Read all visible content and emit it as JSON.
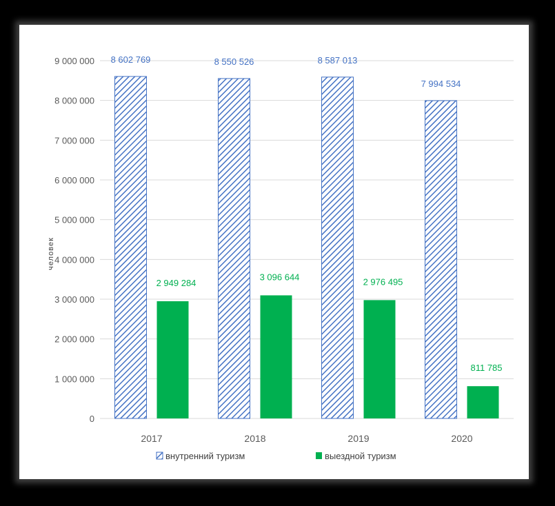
{
  "chart_data": {
    "type": "bar",
    "title": "",
    "xlabel": "",
    "ylabel": "человек",
    "categories": [
      "2017",
      "2018",
      "2019",
      "2020"
    ],
    "ylim": [
      0,
      9000000
    ],
    "yticks": [
      0,
      1000000,
      2000000,
      3000000,
      4000000,
      5000000,
      6000000,
      7000000,
      8000000,
      9000000
    ],
    "ytick_labels": [
      "0",
      "1 000 000",
      "2 000 000",
      "3 000 000",
      "4 000 000",
      "5 000 000",
      "6 000 000",
      "7 000 000",
      "8 000 000",
      "9 000 000"
    ],
    "grid": true,
    "legend_position": "bottom",
    "series": [
      {
        "name": "внутренний туризм",
        "color": "#4472C4",
        "pattern": "diagonal-hatch",
        "values": [
          8602769,
          8550526,
          8587013,
          7994534
        ],
        "labels": [
          "8 602 769",
          "8 550 526",
          "8 587 013",
          "7 994 534"
        ]
      },
      {
        "name": "выездной туризм",
        "color": "#00B050",
        "pattern": "solid",
        "values": [
          2949284,
          3096644,
          2976495,
          811785
        ],
        "labels": [
          "2 949 284",
          "3 096 644",
          "2 976 495",
          "811 785"
        ]
      }
    ]
  }
}
